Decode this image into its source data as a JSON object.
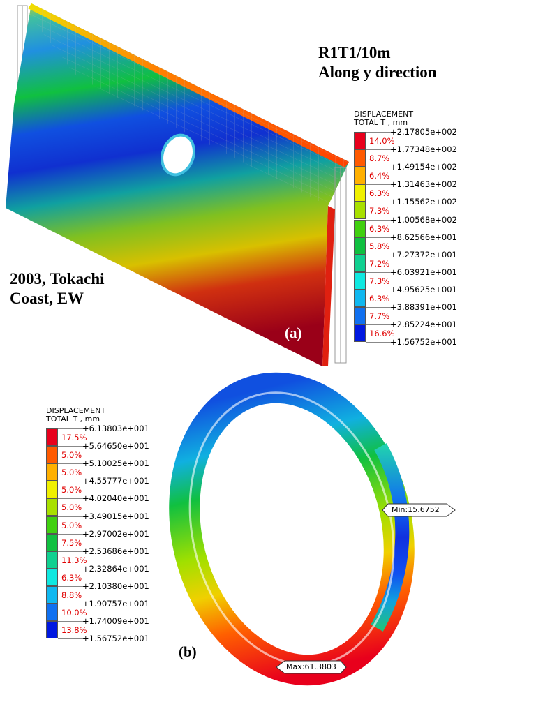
{
  "panel_a": {
    "title_line1": "R1T1/10m",
    "title_line2": "Along y direction",
    "event_line1": "2003, Tokachi",
    "event_line2": "Coast, EW",
    "tag": "(a)",
    "legend": {
      "title_line1": "DISPLACEMENT",
      "title_line2": "TOTAL T , mm",
      "values": [
        "+2.17805e+002",
        "+1.77348e+002",
        "+1.49154e+002",
        "+1.31463e+002",
        "+1.15562e+002",
        "+1.00568e+002",
        "+8.62566e+001",
        "+7.27372e+001",
        "+6.03921e+001",
        "+4.95625e+001",
        "+3.88391e+001",
        "+2.85224e+001",
        "+1.56752e+001"
      ],
      "percents": [
        "14.0%",
        "8.7%",
        "6.4%",
        "6.3%",
        "7.3%",
        "6.3%",
        "5.8%",
        "7.2%",
        "7.3%",
        "6.3%",
        "7.7%",
        "16.6%"
      ],
      "colors": [
        "#e8001c",
        "#ff5a00",
        "#ffb000",
        "#f0f000",
        "#a8e000",
        "#40d010",
        "#10c040",
        "#10d090",
        "#10e8e0",
        "#10b8f0",
        "#1070f0",
        "#0018e0"
      ]
    }
  },
  "panel_b": {
    "tag": "(b)",
    "min_label": "Min:15.6752",
    "max_label": "Max:61.3803",
    "legend": {
      "title_line1": "DISPLACEMENT",
      "title_line2": "TOTAL T , mm",
      "values": [
        "+6.13803e+001",
        "+5.64650e+001",
        "+5.10025e+001",
        "+4.55777e+001",
        "+4.02040e+001",
        "+3.49015e+001",
        "+2.97002e+001",
        "+2.53686e+001",
        "+2.32864e+001",
        "+2.10380e+001",
        "+1.90757e+001",
        "+1.74009e+001",
        "+1.56752e+001"
      ],
      "percents": [
        "17.5%",
        "5.0%",
        "5.0%",
        "5.0%",
        "5.0%",
        "5.0%",
        "7.5%",
        "11.3%",
        "6.3%",
        "8.8%",
        "10.0%",
        "13.8%"
      ],
      "colors": [
        "#e8001c",
        "#ff5a00",
        "#ffb000",
        "#f0f000",
        "#a8e000",
        "#40d010",
        "#10c040",
        "#10d090",
        "#10e8e0",
        "#10b8f0",
        "#1070f0",
        "#0018e0"
      ]
    }
  }
}
